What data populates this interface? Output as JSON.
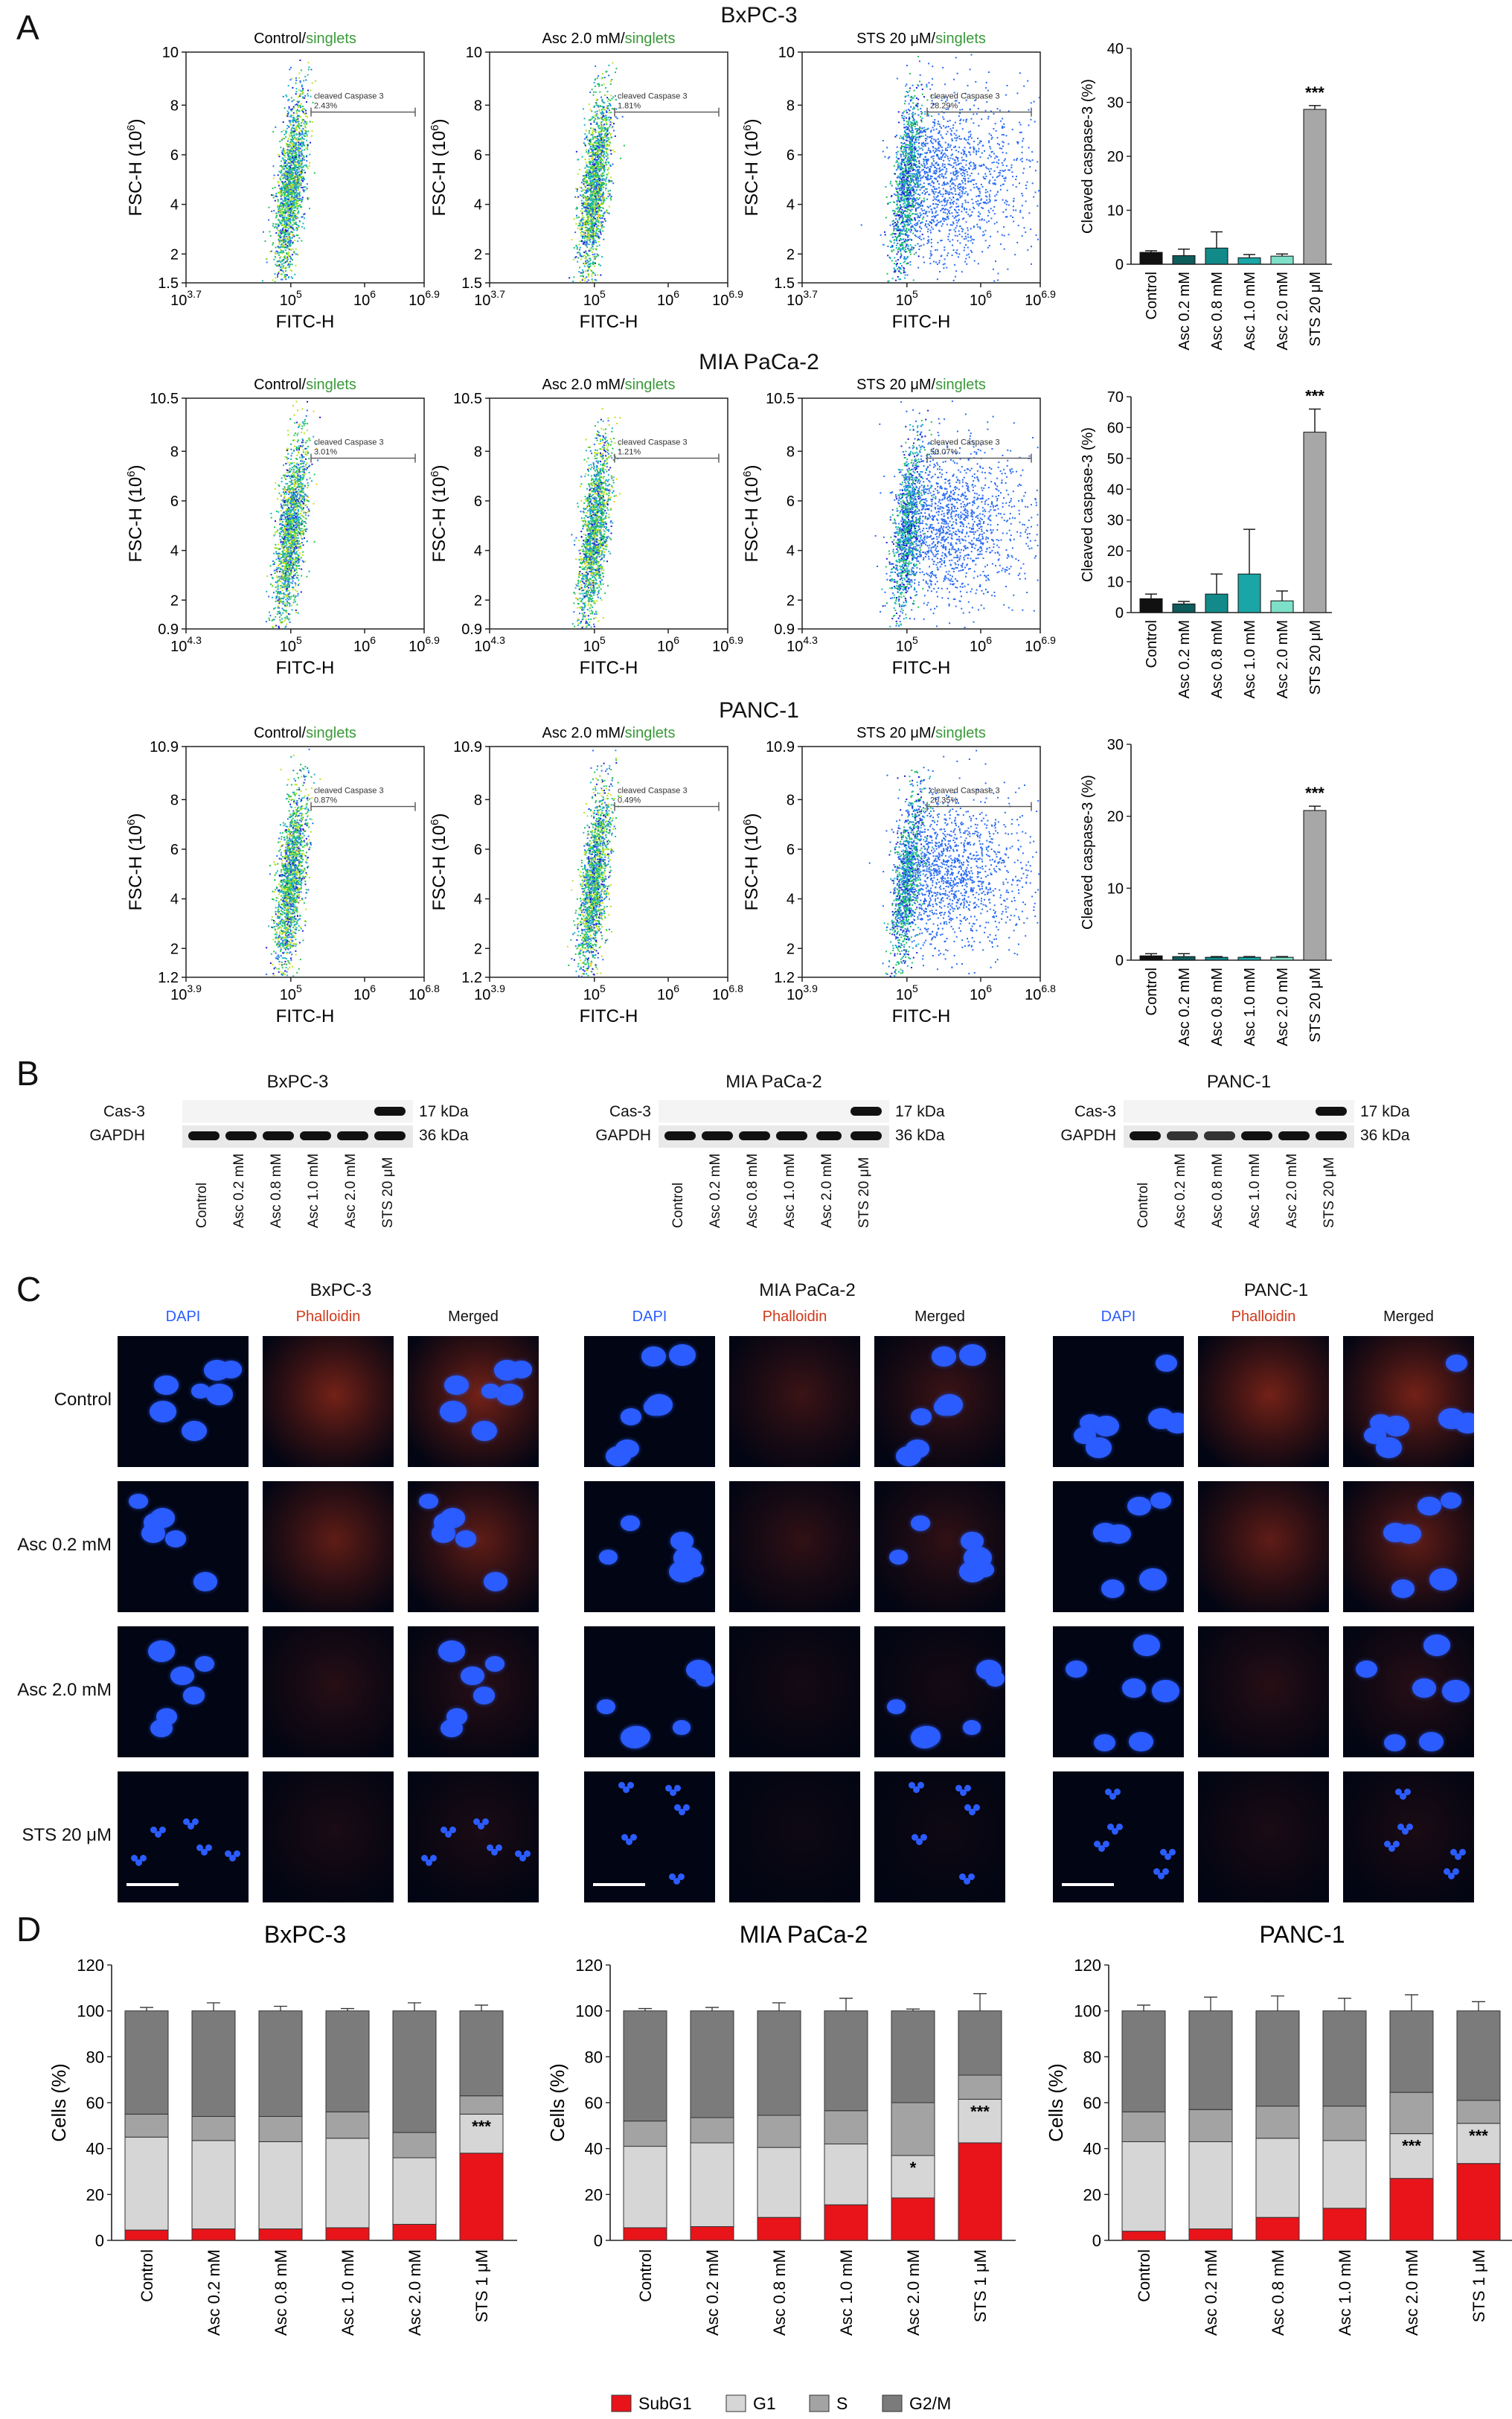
{
  "panel_letters": [
    "A",
    "B",
    "C",
    "D"
  ],
  "flow": {
    "gate_label": "cleaved Caspase 3",
    "x_label": "FITC-H",
    "y_label": "FSC-H (10",
    "y_label_sup": "6",
    "y_label_end": ")",
    "singlets": "singlets",
    "rows": [
      {
        "cell_line": "BxPC-3",
        "y_ticks": [
          "10",
          "8",
          "6",
          "4",
          "2",
          "1.5"
        ],
        "x_ticks": [
          "10",
          "10",
          "10",
          "10"
        ],
        "x_tick_sups": [
          "3.7",
          "5",
          "6",
          "6.9"
        ],
        "plots": [
          {
            "condition": "Control/",
            "gate_pct": "2.43%",
            "spread": "tight"
          },
          {
            "condition": "Asc 2.0 mM/",
            "gate_pct": "1.81%",
            "spread": "tight"
          },
          {
            "condition": "STS 20 μM/",
            "gate_pct": "28.29%",
            "spread": "wide"
          }
        ]
      },
      {
        "cell_line": "MIA PaCa-2",
        "y_ticks": [
          "10.5",
          "8",
          "6",
          "4",
          "2",
          "0.9"
        ],
        "x_ticks": [
          "10",
          "10",
          "10",
          "10"
        ],
        "x_tick_sups": [
          "4.3",
          "5",
          "6",
          "6.9"
        ],
        "plots": [
          {
            "condition": "Control/",
            "gate_pct": "3.01%",
            "spread": "tight"
          },
          {
            "condition": "Asc 2.0 mM/",
            "gate_pct": "1.21%",
            "spread": "tight"
          },
          {
            "condition": "STS 20 μM/",
            "gate_pct": "50.07%",
            "spread": "wide"
          }
        ]
      },
      {
        "cell_line": "PANC-1",
        "y_ticks": [
          "10.9",
          "8",
          "6",
          "4",
          "2",
          "1.2"
        ],
        "x_ticks": [
          "10",
          "10",
          "10",
          "10"
        ],
        "x_tick_sups": [
          "3.9",
          "5",
          "6",
          "6.8"
        ],
        "plots": [
          {
            "condition": "Control/",
            "gate_pct": "0.87%",
            "spread": "tight"
          },
          {
            "condition": "Asc 2.0 mM/",
            "gate_pct": "0.49%",
            "spread": "tight"
          },
          {
            "condition": "STS 20 μM/",
            "gate_pct": "20.35%",
            "spread": "wide"
          }
        ]
      }
    ]
  },
  "chart_data": [
    {
      "type": "bar",
      "panel": "A",
      "cell_line": "BxPC-3",
      "categories": [
        "Control",
        "Asc 0.2 mM",
        "Asc 0.8 mM",
        "Asc 1.0 mM",
        "Asc 2.0 mM",
        "STS 20 μM"
      ],
      "values": [
        2.2,
        1.6,
        3.0,
        1.2,
        1.5,
        28.7
      ],
      "errors": [
        0.3,
        1.2,
        3.0,
        0.6,
        0.4,
        0.7
      ],
      "ylabel": "Cleaved caspase-3 (%)",
      "ylim": [
        0,
        40
      ],
      "yticks": [
        0,
        10,
        20,
        30,
        40
      ],
      "annotation": "***"
    },
    {
      "type": "bar",
      "panel": "A",
      "cell_line": "MIA PaCa-2",
      "categories": [
        "Control",
        "Asc 0.2 mM",
        "Asc 0.8 mM",
        "Asc 1.0 mM",
        "Asc 2.0 mM",
        "STS 20 μM"
      ],
      "values": [
        4.5,
        2.8,
        6.0,
        12.5,
        3.8,
        58.5
      ],
      "errors": [
        1.5,
        0.8,
        6.5,
        14.5,
        3.2,
        7.5
      ],
      "ylabel": "Cleaved caspase-3 (%)",
      "ylim": [
        0,
        70
      ],
      "yticks": [
        0,
        10,
        20,
        30,
        40,
        50,
        60,
        70
      ],
      "annotation": "***"
    },
    {
      "type": "bar",
      "panel": "A",
      "cell_line": "PANC-1",
      "categories": [
        "Control",
        "Asc 0.2 mM",
        "Asc 0.8 mM",
        "Asc 1.0 mM",
        "Asc 2.0 mM",
        "STS 20 μM"
      ],
      "values": [
        0.6,
        0.5,
        0.4,
        0.4,
        0.4,
        20.8
      ],
      "errors": [
        0.3,
        0.4,
        0.1,
        0.1,
        0.1,
        0.6
      ],
      "ylabel": "Cleaved caspase-3 (%)",
      "ylim": [
        0,
        30
      ],
      "yticks": [
        0,
        10,
        20,
        30
      ],
      "annotation": "***"
    },
    {
      "type": "bar",
      "panel": "D",
      "stacked": true,
      "cell_line": "BxPC-3",
      "categories": [
        "Control",
        "Asc 0.2 mM",
        "Asc 0.8 mM",
        "Asc 1.0 mM",
        "Asc 2.0 mM",
        "STS 1 μM"
      ],
      "series": [
        {
          "name": "SubG1",
          "values": [
            4.5,
            5.0,
            5.0,
            5.5,
            7.0,
            38.0
          ],
          "errors": [
            1.2,
            0.8,
            0.8,
            1.0,
            1.5,
            6.0
          ]
        },
        {
          "name": "G1",
          "values": [
            40.5,
            38.5,
            38.0,
            39.0,
            29.0,
            17.0
          ],
          "errors": [
            4.0,
            4.5,
            2.5,
            3.5,
            4.5,
            3.0
          ]
        },
        {
          "name": "S",
          "values": [
            10.0,
            10.5,
            11.0,
            11.5,
            11.0,
            8.0
          ],
          "errors": [
            1.0,
            1.0,
            0.8,
            0.7,
            1.5,
            1.5
          ]
        },
        {
          "name": "G2/M",
          "values": [
            45.0,
            46.0,
            46.0,
            44.0,
            53.0,
            37.0
          ],
          "errors": [
            1.5,
            3.5,
            2.0,
            1.0,
            3.5,
            2.5
          ]
        }
      ],
      "ylabel": "Cells (%)",
      "ylim": [
        0,
        120
      ],
      "yticks": [
        0,
        20,
        40,
        60,
        80,
        100,
        120
      ],
      "annotations": [
        "",
        "",
        "",
        "",
        "",
        "***"
      ]
    },
    {
      "type": "bar",
      "panel": "D",
      "stacked": true,
      "cell_line": "MIA PaCa-2",
      "categories": [
        "Control",
        "Asc 0.2 mM",
        "Asc 0.8 mM",
        "Asc 1.0 mM",
        "Asc 2.0 mM",
        "STS 1 μM"
      ],
      "series": [
        {
          "name": "SubG1",
          "values": [
            5.5,
            6.0,
            10.0,
            15.5,
            18.5,
            42.5
          ],
          "errors": [
            2.0,
            1.5,
            6.5,
            10.0,
            7.0,
            10.0
          ]
        },
        {
          "name": "G1",
          "values": [
            35.5,
            36.5,
            30.5,
            26.5,
            18.5,
            19.0
          ],
          "errors": [
            3.0,
            2.0,
            5.5,
            5.5,
            6.0,
            4.0
          ]
        },
        {
          "name": "S",
          "values": [
            11.0,
            11.0,
            14.0,
            14.5,
            23.0,
            10.5
          ],
          "errors": [
            1.5,
            1.0,
            2.0,
            3.0,
            11.5,
            2.5
          ]
        },
        {
          "name": "G2/M",
          "values": [
            48.0,
            46.5,
            45.5,
            43.5,
            40.0,
            28.0
          ],
          "errors": [
            1.0,
            1.5,
            3.5,
            5.5,
            0.8,
            7.5
          ]
        }
      ],
      "ylabel": "Cells (%)",
      "ylim": [
        0,
        120
      ],
      "yticks": [
        0,
        20,
        40,
        60,
        80,
        100,
        120
      ],
      "annotations": [
        "",
        "",
        "",
        "",
        "*",
        "***"
      ]
    },
    {
      "type": "bar",
      "panel": "D",
      "stacked": true,
      "cell_line": "PANC-1",
      "categories": [
        "Control",
        "Asc 0.2 mM",
        "Asc 0.8 mM",
        "Asc 1.0 mM",
        "Asc 2.0 mM",
        "STS 1 μM"
      ],
      "series": [
        {
          "name": "SubG1",
          "values": [
            4.0,
            5.0,
            10.0,
            14.0,
            27.0,
            33.5
          ],
          "errors": [
            1.2,
            1.8,
            5.0,
            8.0,
            8.0,
            5.0
          ]
        },
        {
          "name": "G1",
          "values": [
            39.0,
            38.0,
            34.5,
            29.5,
            19.5,
            17.5
          ],
          "errors": [
            3.5,
            6.0,
            2.0,
            3.5,
            5.0,
            3.5
          ]
        },
        {
          "name": "S",
          "values": [
            13.0,
            14.0,
            14.0,
            15.0,
            18.0,
            10.0
          ],
          "errors": [
            1.5,
            1.0,
            2.0,
            2.0,
            4.0,
            1.5
          ]
        },
        {
          "name": "G2/M",
          "values": [
            44.0,
            43.0,
            41.5,
            41.5,
            35.5,
            39.0
          ],
          "errors": [
            2.5,
            6.0,
            6.5,
            5.5,
            7.0,
            4.0
          ]
        }
      ],
      "ylabel": "Cells (%)",
      "ylim": [
        0,
        120
      ],
      "yticks": [
        0,
        20,
        40,
        60,
        80,
        100,
        120
      ],
      "annotations": [
        "",
        "",
        "",
        "",
        "***",
        "***"
      ]
    }
  ],
  "western": {
    "categories": [
      "Control",
      "Asc 0.2 mM",
      "Asc 0.8 mM",
      "Asc 1.0 mM",
      "Asc 2.0 mM",
      "STS 20 μM"
    ],
    "cas3_label": "Cas-3",
    "gapdh_label": "GAPDH",
    "cas3_kda": "17 kDa",
    "gapdh_kda": "36 kDa",
    "blots": [
      {
        "cell_line": "BxPC-3",
        "cas3_lane_intensity": [
          0,
          0,
          0,
          0,
          0,
          1
        ]
      },
      {
        "cell_line": "MIA PaCa-2",
        "cas3_lane_intensity": [
          0,
          0,
          0,
          0,
          0,
          1
        ]
      },
      {
        "cell_line": "PANC-1",
        "cas3_lane_intensity": [
          0,
          0,
          0,
          0,
          0,
          1
        ]
      }
    ]
  },
  "microscopy": {
    "col_labels": [
      "DAPI",
      "Phalloidin",
      "Merged"
    ],
    "row_labels": [
      "Control",
      "Asc 0.2 mM",
      "Asc 2.0 mM",
      "STS 20 μM"
    ],
    "cell_lines": [
      "BxPC-3",
      "MIA PaCa-2",
      "PANC-1"
    ],
    "colors": {
      "dapi": "#2b5cff",
      "phalloidin": "#d0391a"
    }
  },
  "legend": [
    "SubG1",
    "G1",
    "S",
    "G2/M"
  ],
  "colors": {
    "SubG1": "#e8141a",
    "G1": "#d6d6d6",
    "S": "#a3a3a3",
    "G2/M": "#7b7b7b",
    "singlets": "#3a9a3a",
    "bars_a": [
      "#111111",
      "#0e5c5c",
      "#138a8a",
      "#1aa6a6",
      "#7ee0c8",
      "#a7a7a7"
    ]
  }
}
